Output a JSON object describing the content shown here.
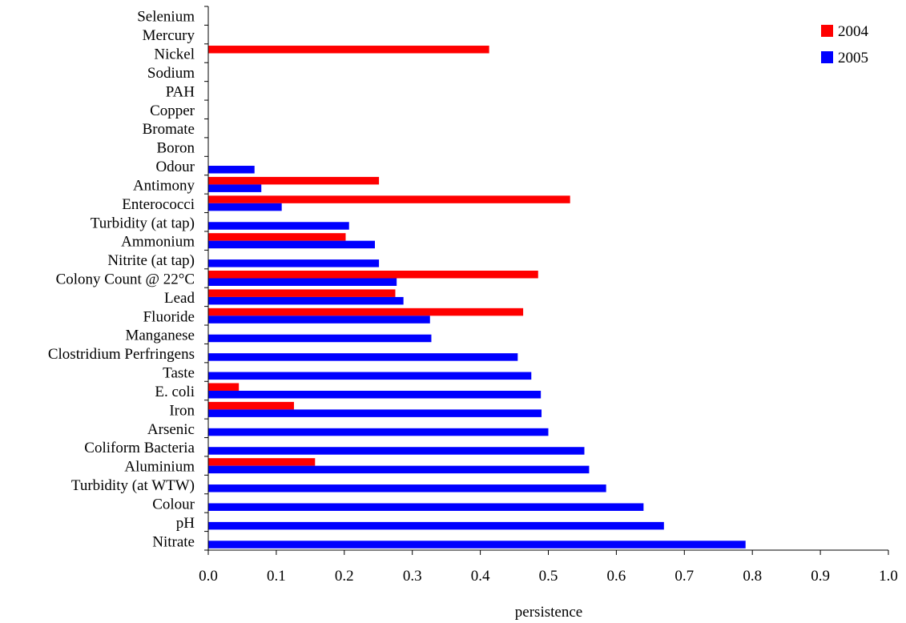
{
  "chart_data": {
    "type": "bar",
    "orientation": "horizontal",
    "categories": [
      "Nitrate",
      "pH",
      "Colour",
      "Turbidity (at WTW)",
      "Aluminium",
      "Coliform Bacteria",
      "Arsenic",
      "Iron",
      "E. coli",
      "Taste",
      "Clostridium Perfringens",
      "Manganese",
      "Fluoride",
      "Lead",
      "Colony Count @ 22°C",
      "Nitrite (at tap)",
      "Ammonium",
      "Turbidity (at tap)",
      "Enterococci",
      "Antimony",
      "Odour",
      "Boron",
      "Bromate",
      "Copper",
      "PAH",
      "Sodium",
      "Nickel",
      "Mercury",
      "Selenium"
    ],
    "series": [
      {
        "name": "2004",
        "color": "#ff0000",
        "values": [
          0,
          0,
          0,
          0,
          0.157,
          0,
          0,
          0.126,
          0.045,
          0,
          0,
          0,
          0.463,
          0.275,
          0.485,
          0,
          0.202,
          0,
          0.532,
          0.251,
          0,
          0,
          0,
          0,
          0,
          0,
          0.413,
          0,
          0
        ]
      },
      {
        "name": "2005",
        "color": "#0000ff",
        "values": [
          0.79,
          0.67,
          0.64,
          0.585,
          0.56,
          0.553,
          0.5,
          0.49,
          0.489,
          0.475,
          0.455,
          0.328,
          0.326,
          0.287,
          0.277,
          0.251,
          0.245,
          0.207,
          0.108,
          0.078,
          0.068,
          0,
          0,
          0,
          0,
          0,
          0,
          0,
          0
        ]
      }
    ],
    "title": "",
    "xlabel": "persistence",
    "ylabel": "",
    "xlim": [
      0.0,
      1.0
    ],
    "xticks": [
      "0.0",
      "0.1",
      "0.2",
      "0.3",
      "0.4",
      "0.5",
      "0.6",
      "0.7",
      "0.8",
      "0.9",
      "1.0"
    ],
    "grid": false,
    "legend_position": "top-right"
  }
}
